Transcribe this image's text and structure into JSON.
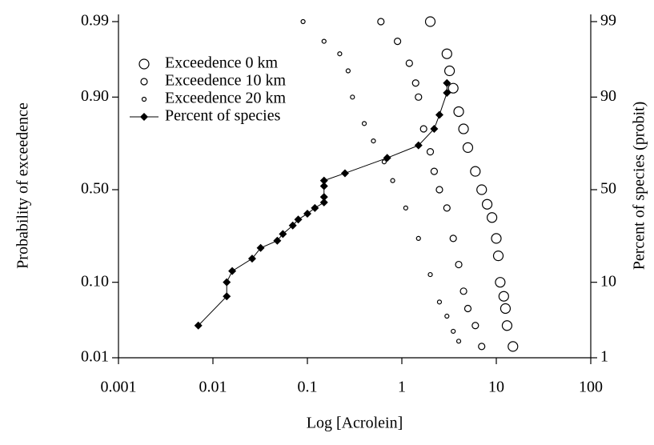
{
  "chart_data": {
    "type": "scatter",
    "x_label": "Log [Acrolein]",
    "y_label": "Probability of exceedence",
    "y2_label": "Percent of species (probit)",
    "xscale": "log",
    "yscale": "probit",
    "y2scale": "probit",
    "xlim": [
      0.001,
      100
    ],
    "xticks": [
      0.001,
      0.01,
      0.1,
      1,
      10,
      100
    ],
    "ylim": [
      0.01,
      0.99
    ],
    "yticks": [
      0.01,
      {
        "value": 0.1,
        "label": "0.10"
      },
      {
        "value": 0.5,
        "label": "0.50"
      },
      {
        "value": 0.9,
        "label": "0.90"
      },
      0.99
    ],
    "y2lim": [
      1,
      99
    ],
    "y2ticks": [
      1,
      10,
      50,
      90,
      99
    ],
    "legend": "top-left",
    "series": [
      {
        "name": "Exceedence 0 km",
        "color": "#000",
        "marker": "circle",
        "size": 6,
        "x": [
          2,
          3,
          3.2,
          3.5,
          4,
          4.5,
          5,
          6,
          7,
          8,
          9,
          10,
          10.5,
          11,
          12,
          12.5,
          13,
          15
        ],
        "values": [
          0.99,
          0.97,
          0.95,
          0.92,
          0.86,
          0.8,
          0.72,
          0.6,
          0.5,
          0.42,
          0.35,
          0.25,
          0.18,
          0.1,
          0.07,
          0.05,
          0.03,
          0.015
        ]
      },
      {
        "name": "Exceedence 10 km",
        "color": "#000",
        "marker": "circle",
        "size": 4,
        "x": [
          0.6,
          0.9,
          1.2,
          1.4,
          1.5,
          1.7,
          2,
          2.2,
          2.5,
          3,
          3.5,
          4,
          4.5,
          5,
          6,
          7
        ],
        "values": [
          0.99,
          0.98,
          0.96,
          0.93,
          0.9,
          0.8,
          0.7,
          0.6,
          0.5,
          0.4,
          0.25,
          0.15,
          0.08,
          0.05,
          0.03,
          0.015
        ]
      },
      {
        "name": "Exceedence 20 km",
        "color": "#000",
        "marker": "circle",
        "size": 2.5,
        "x": [
          0.09,
          0.15,
          0.22,
          0.27,
          0.3,
          0.4,
          0.5,
          0.65,
          0.8,
          1.1,
          1.5,
          2,
          2.5,
          3,
          3.5,
          4
        ],
        "values": [
          0.99,
          0.98,
          0.97,
          0.95,
          0.9,
          0.82,
          0.75,
          0.65,
          0.55,
          0.4,
          0.25,
          0.12,
          0.06,
          0.04,
          0.025,
          0.018
        ]
      },
      {
        "name": "Percent of species",
        "color": "#000",
        "marker": "diamond",
        "size": 5,
        "line": true,
        "axis": "y2",
        "x": [
          0.007,
          0.014,
          0.014,
          0.016,
          0.026,
          0.032,
          0.048,
          0.055,
          0.07,
          0.08,
          0.1,
          0.12,
          0.15,
          0.15,
          0.15,
          0.15,
          0.25,
          0.7,
          1.5,
          2.2,
          2.5,
          3,
          3
        ],
        "values": [
          3,
          7,
          10,
          13,
          17,
          21,
          24,
          27,
          31,
          34,
          37,
          40,
          43,
          46,
          52,
          55,
          59,
          67,
          73,
          80,
          85,
          91,
          93
        ]
      }
    ]
  }
}
